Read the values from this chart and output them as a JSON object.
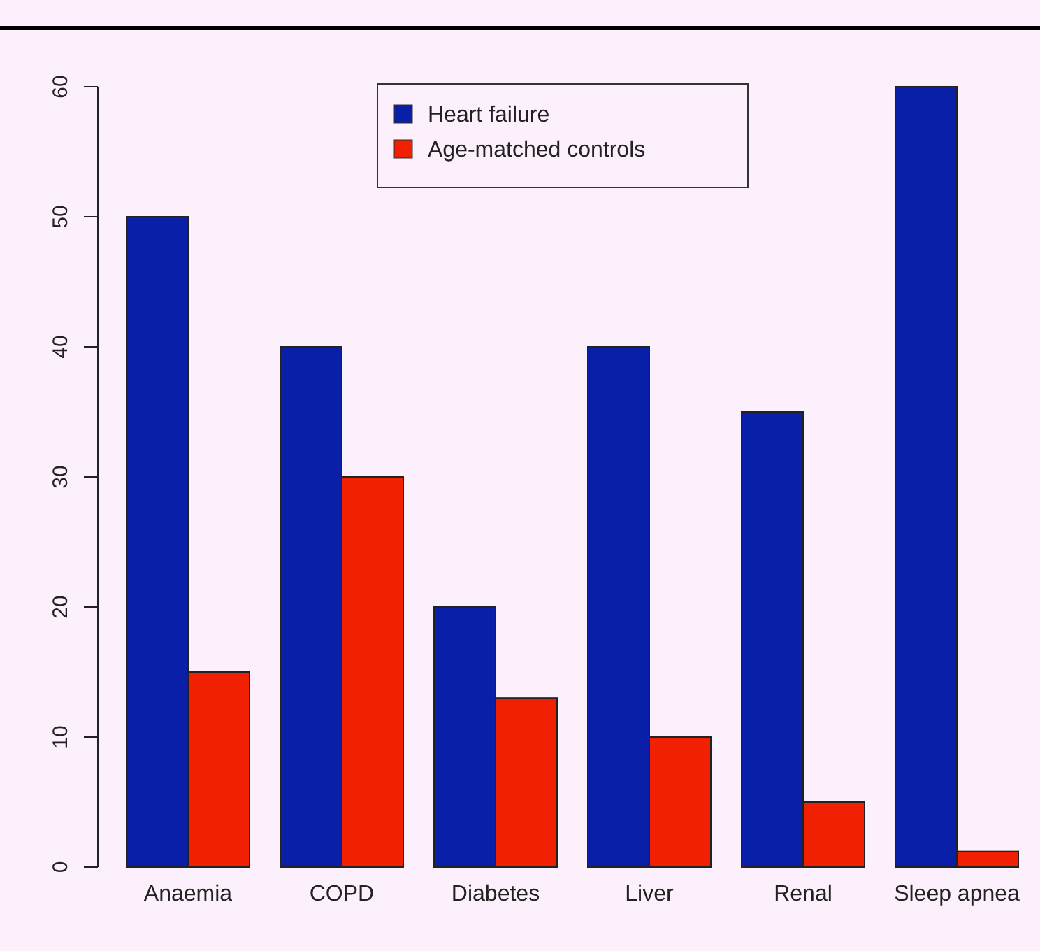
{
  "chart_data": {
    "type": "bar",
    "categories": [
      "Anaemia",
      "COPD",
      "Diabetes",
      "Liver",
      "Renal",
      "Sleep apnea"
    ],
    "series": [
      {
        "name": "Heart failure",
        "color": "#0a1fa8",
        "values": [
          50,
          40,
          20,
          40,
          35,
          60
        ]
      },
      {
        "name": "Age-matched controls",
        "color": "#f02000",
        "values": [
          15,
          30,
          13,
          10,
          5,
          1.2
        ]
      }
    ],
    "ylim": [
      0,
      60
    ],
    "yticks": [
      0,
      10,
      20,
      30,
      40,
      50,
      60
    ],
    "legend": "top"
  }
}
